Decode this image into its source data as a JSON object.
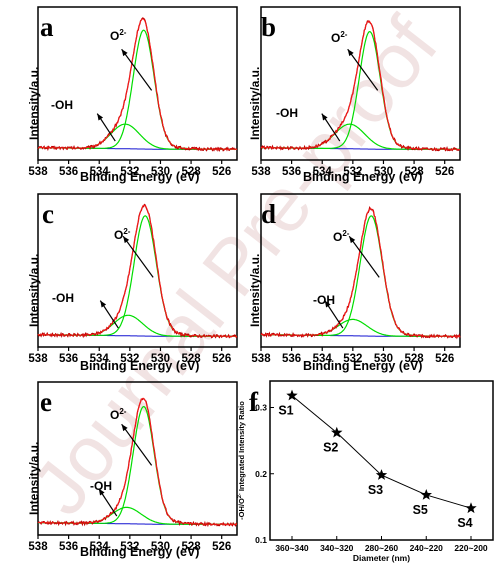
{
  "watermark_text": "Journal Pre-proof",
  "colors": {
    "raw": "#c00000",
    "fit": "#00dd00",
    "baseline": "#1010d0",
    "envelope": "#ff2020",
    "axis": "#000000",
    "watermark": "#f2e6e6"
  },
  "chart_data": [
    {
      "panel": "a",
      "type": "line",
      "xlabel": "Binding Energy (eV)",
      "ylabel": "Intensity/a.u.",
      "xlim": [
        538,
        525
      ],
      "xticks": [
        "538",
        "536",
        "534",
        "532",
        "530",
        "528",
        "526"
      ],
      "annotations": {
        "oh": "-OH",
        "o2": "O",
        "o2_sup": "2-"
      },
      "series": [
        {
          "peak": "O2-",
          "center": 531.1,
          "fwhm": 1.6,
          "height": 0.85
        },
        {
          "peak": "-OH",
          "center": 532.3,
          "fwhm": 2.2,
          "height": 0.18
        }
      ]
    },
    {
      "panel": "b",
      "type": "line",
      "xlabel": "Binding Energy (eV)",
      "ylabel": "Intensity/a.u.",
      "xlim": [
        538,
        525
      ],
      "xticks": [
        "538",
        "536",
        "534",
        "532",
        "530",
        "528",
        "526"
      ],
      "annotations": {
        "oh": "-OH",
        "o2": "O",
        "o2_sup": "2-"
      },
      "series": [
        {
          "peak": "O2-",
          "center": 530.9,
          "fwhm": 1.6,
          "height": 0.84
        },
        {
          "peak": "-OH",
          "center": 532.2,
          "fwhm": 2.3,
          "height": 0.18
        }
      ]
    },
    {
      "panel": "c",
      "type": "line",
      "xlabel": "Binding Energy (eV)",
      "ylabel": "Intensity/a.u.",
      "xlim": [
        538,
        525
      ],
      "xticks": [
        "538",
        "536",
        "534",
        "532",
        "530",
        "528",
        "526"
      ],
      "annotations": {
        "oh": "-OH",
        "o2": "O",
        "o2_sup": "2-"
      },
      "series": [
        {
          "peak": "O2-",
          "center": 531.0,
          "fwhm": 1.7,
          "height": 0.86
        },
        {
          "peak": "-OH",
          "center": 532.1,
          "fwhm": 2.2,
          "height": 0.15
        }
      ]
    },
    {
      "panel": "d",
      "type": "line",
      "xlabel": "Binding Energy (eV)",
      "ylabel": "Intensity/a.u.",
      "xlim": [
        538,
        525
      ],
      "xticks": [
        "538",
        "536",
        "534",
        "532",
        "530",
        "528",
        "526"
      ],
      "annotations": {
        "oh": "-OH",
        "o2": "O",
        "o2_sup": "2-"
      },
      "series": [
        {
          "peak": "O2-",
          "center": 530.8,
          "fwhm": 1.7,
          "height": 0.86
        },
        {
          "peak": "-OH",
          "center": 532.0,
          "fwhm": 2.2,
          "height": 0.12
        }
      ]
    },
    {
      "panel": "e",
      "type": "line",
      "xlabel": "Binding Energy (eV)",
      "ylabel": "Intensity/a.u.",
      "xlim": [
        538,
        525
      ],
      "xticks": [
        "538",
        "536",
        "534",
        "532",
        "530",
        "528",
        "526"
      ],
      "annotations": {
        "oh": "-OH",
        "o2": "O",
        "o2_sup": "2-"
      },
      "series": [
        {
          "peak": "O2-",
          "center": 531.1,
          "fwhm": 1.6,
          "height": 0.84
        },
        {
          "peak": "-OH",
          "center": 532.2,
          "fwhm": 2.2,
          "height": 0.12
        }
      ]
    },
    {
      "panel": "f",
      "type": "scatter",
      "xlabel": "Diameter (nm)",
      "ylabel_prefix": "-OH/O",
      "ylabel_sup": "2-",
      "ylabel_suffix": " Integrated Intensity Ratio",
      "categories": [
        "360~340",
        "340~320",
        "280~260",
        "240~220",
        "220~200"
      ],
      "point_labels": [
        "S1",
        "S2",
        "S3",
        "S5",
        "S4"
      ],
      "values": [
        0.318,
        0.262,
        0.198,
        0.168,
        0.148
      ],
      "ylim": [
        0.1,
        0.34
      ],
      "yticks": [
        "0.1",
        "0.2",
        "0.3"
      ]
    }
  ]
}
